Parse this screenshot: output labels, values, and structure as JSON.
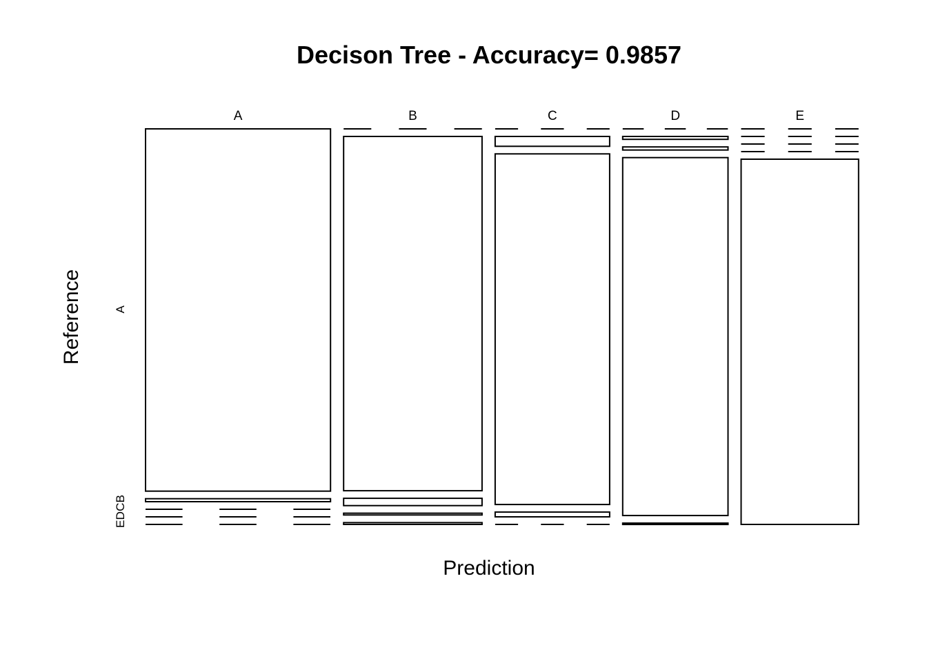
{
  "chart_data": {
    "type": "mosaic",
    "title": "Decison Tree - Accuracy= 0.9857",
    "xlabel": "Prediction",
    "ylabel": "Reference",
    "prediction_levels": [
      "A",
      "B",
      "C",
      "D",
      "E"
    ],
    "reference_levels": [
      "A",
      "B",
      "C",
      "D",
      "E"
    ],
    "reference_tick_labels": {
      "main": "A",
      "stacked": "EDCB"
    },
    "column_fractions": [
      0.2912,
      0.2179,
      0.1802,
      0.1658,
      0.1849
    ],
    "cell_fractions": [
      [
        0.9918,
        0.0082,
        0.0,
        0.0,
        0.0
      ],
      [
        0.0,
        0.97,
        0.02,
        0.005,
        0.005
      ],
      [
        0.0,
        0.027,
        0.96,
        0.013,
        0.0
      ],
      [
        0.0,
        0.008,
        0.0085,
        0.98,
        0.0035
      ],
      [
        0.0,
        0.0,
        0.0,
        0.0,
        1.0
      ]
    ]
  }
}
